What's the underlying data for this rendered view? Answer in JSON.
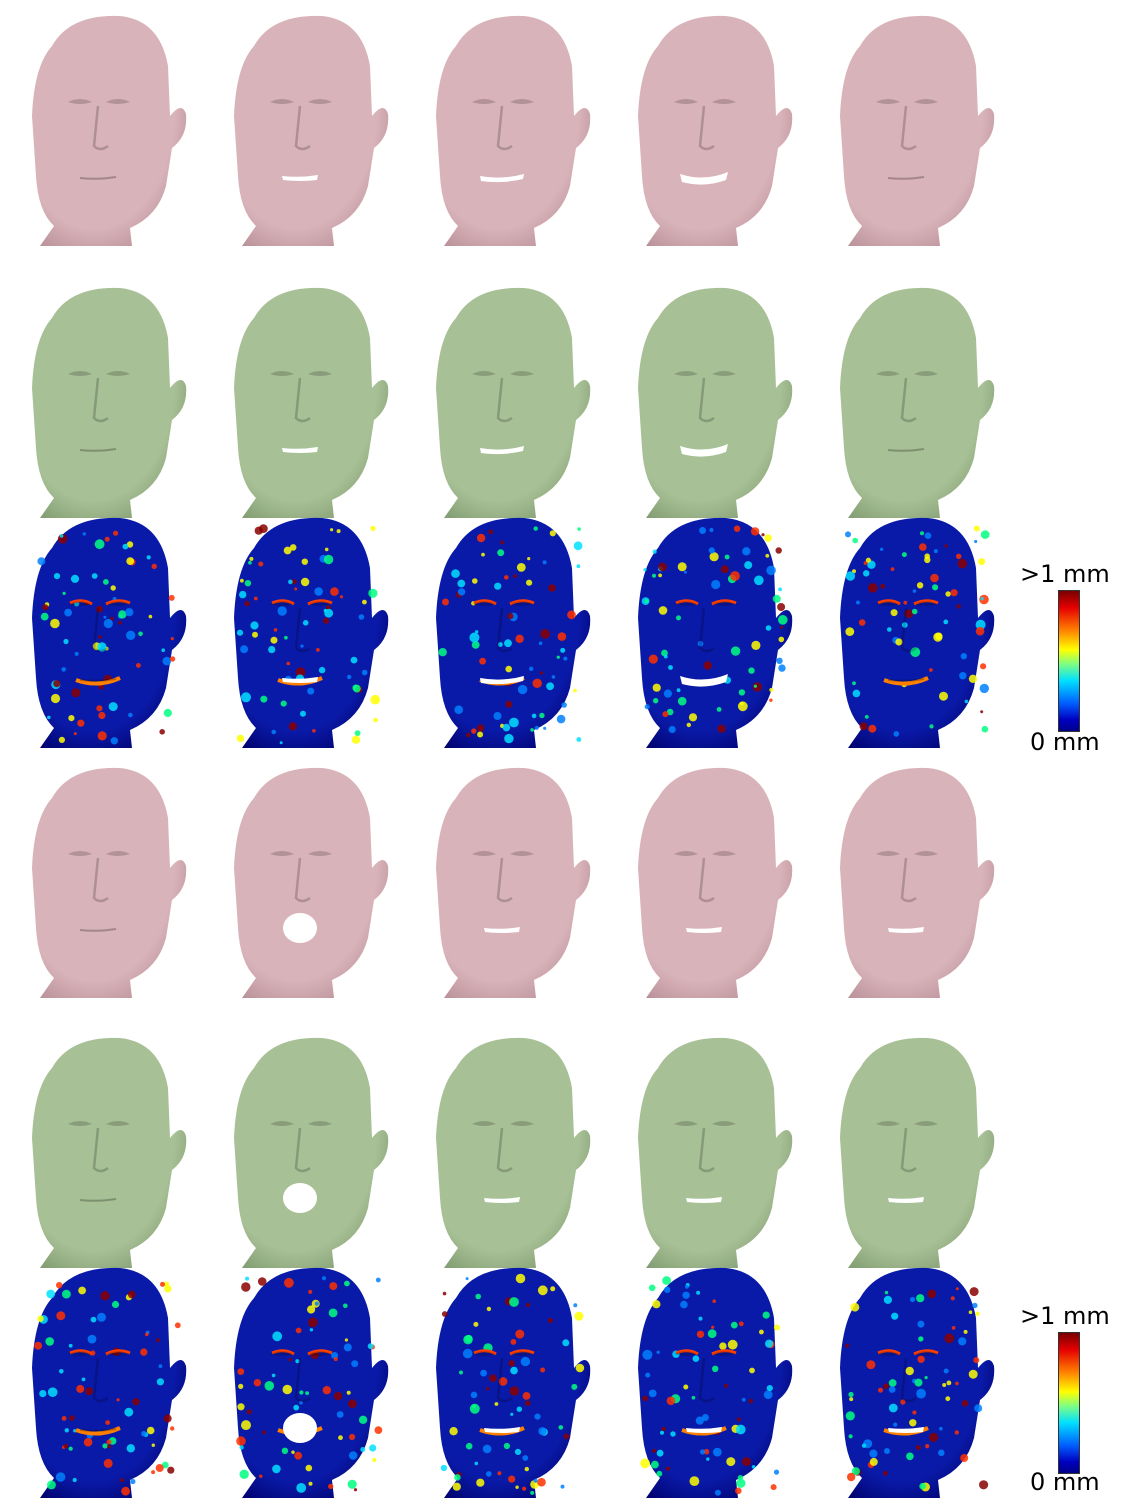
{
  "colors": {
    "scan": "#d9b3ba",
    "scan_shade": "#b88f97",
    "model": "#a8c096",
    "model_shade": "#7f9a70",
    "heat_base": "#0a1aa8",
    "heat_warm": "#ff6a00"
  },
  "rows": [
    {
      "kind": "scan",
      "faces": [
        "neutral",
        "slight-open",
        "smile",
        "smile-wide",
        "neutral"
      ]
    },
    {
      "kind": "model",
      "faces": [
        "neutral",
        "slight-open",
        "smile",
        "smile-wide",
        "neutral"
      ]
    },
    {
      "kind": "error",
      "faces": [
        "neutral",
        "slight-open",
        "smile",
        "smile-wide",
        "neutral"
      ]
    },
    {
      "kind": "scan",
      "faces": [
        "neutral",
        "open",
        "slight-open",
        "slight-open",
        "slight-open"
      ]
    },
    {
      "kind": "model",
      "faces": [
        "neutral",
        "open",
        "slight-open",
        "slight-open",
        "slight-open"
      ]
    },
    {
      "kind": "error",
      "faces": [
        "neutral",
        "open",
        "slight-open",
        "slight-open",
        "slight-open"
      ]
    }
  ],
  "colorbars": [
    {
      "max_label": ">1 mm",
      "min_label": "0 mm"
    },
    {
      "max_label": ">1 mm",
      "min_label": "0 mm"
    }
  ]
}
